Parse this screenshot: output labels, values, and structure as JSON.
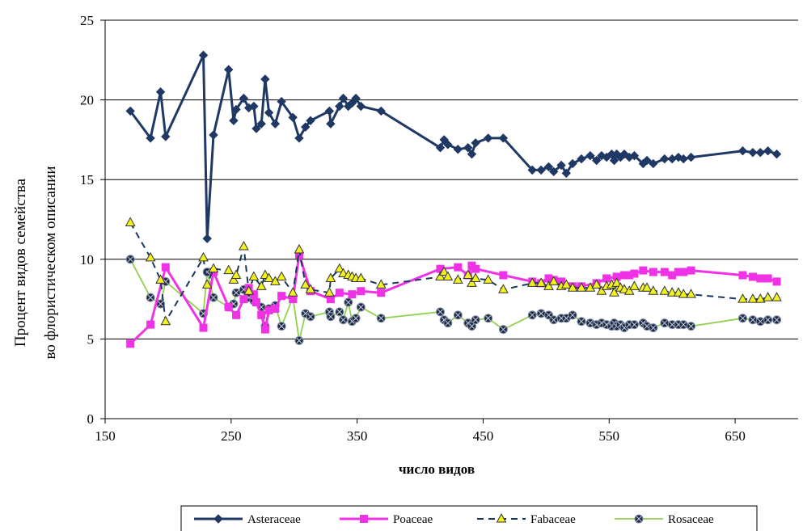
{
  "colors": {
    "Asteraceae": "#1F3864",
    "Poaceae": "#F032E6",
    "Fabaceae": "#17375E",
    "Fabaceae_marker_fill": "#F2F21E",
    "Rosaceae": "#92D050",
    "Rosaceae_marker_fill": "#1F2A44",
    "grid": "#000000"
  },
  "chart_data": {
    "type": "line",
    "title": "",
    "xlabel": "число видов",
    "ylabel_line1": "Процент видов семейства",
    "ylabel_line2": "во флористическом описании",
    "xlim": [
      150,
      700
    ],
    "ylim": [
      0,
      25
    ],
    "x_ticks": [
      150,
      250,
      350,
      450,
      550,
      650
    ],
    "y_ticks": [
      0,
      5,
      10,
      15,
      20,
      25
    ],
    "grid": "horizontal",
    "legend_position": "bottom",
    "series": [
      {
        "name": "Asteraceae",
        "style": "solid-diamond",
        "points": [
          [
            170,
            19.3
          ],
          [
            186,
            17.6
          ],
          [
            194,
            20.5
          ],
          [
            198,
            17.7
          ],
          [
            228,
            22.8
          ],
          [
            231,
            11.3
          ],
          [
            236,
            17.8
          ],
          [
            248,
            21.9
          ],
          [
            252,
            18.7
          ],
          [
            254,
            19.4
          ],
          [
            260,
            20.1
          ],
          [
            264,
            19.5
          ],
          [
            268,
            19.6
          ],
          [
            270,
            18.2
          ],
          [
            274,
            18.5
          ],
          [
            277,
            21.3
          ],
          [
            280,
            19.2
          ],
          [
            285,
            18.5
          ],
          [
            290,
            19.9
          ],
          [
            299,
            18.9
          ],
          [
            304,
            17.6
          ],
          [
            309,
            18.3
          ],
          [
            313,
            18.7
          ],
          [
            328,
            19.3
          ],
          [
            329,
            18.5
          ],
          [
            336,
            19.6
          ],
          [
            339,
            20.1
          ],
          [
            343,
            19.6
          ],
          [
            346,
            19.8
          ],
          [
            349,
            20.1
          ],
          [
            353,
            19.6
          ],
          [
            369,
            19.3
          ],
          [
            416,
            17.0
          ],
          [
            419,
            17.5
          ],
          [
            422,
            17.2
          ],
          [
            430,
            16.9
          ],
          [
            438,
            17.0
          ],
          [
            441,
            16.6
          ],
          [
            444,
            17.3
          ],
          [
            454,
            17.6
          ],
          [
            466,
            17.6
          ],
          [
            489,
            15.6
          ],
          [
            496,
            15.6
          ],
          [
            502,
            15.8
          ],
          [
            506,
            15.5
          ],
          [
            512,
            15.9
          ],
          [
            516,
            15.4
          ],
          [
            521,
            16.0
          ],
          [
            528,
            16.3
          ],
          [
            535,
            16.5
          ],
          [
            540,
            16.2
          ],
          [
            544,
            16.5
          ],
          [
            548,
            16.4
          ],
          [
            552,
            16.6
          ],
          [
            554,
            16.2
          ],
          [
            556,
            16.6
          ],
          [
            559,
            16.4
          ],
          [
            562,
            16.6
          ],
          [
            566,
            16.4
          ],
          [
            570,
            16.5
          ],
          [
            577,
            16.0
          ],
          [
            580,
            16.2
          ],
          [
            585,
            16.0
          ],
          [
            594,
            16.3
          ],
          [
            600,
            16.3
          ],
          [
            605,
            16.4
          ],
          [
            609,
            16.3
          ],
          [
            615,
            16.4
          ],
          [
            656,
            16.8
          ],
          [
            664,
            16.7
          ],
          [
            670,
            16.7
          ],
          [
            676,
            16.8
          ],
          [
            683,
            16.6
          ]
        ]
      },
      {
        "name": "Poaceae",
        "style": "solid-square",
        "points": [
          [
            170,
            4.7
          ],
          [
            186,
            5.9
          ],
          [
            198,
            9.5
          ],
          [
            228,
            5.7
          ],
          [
            236,
            9.2
          ],
          [
            248,
            7.0
          ],
          [
            254,
            6.5
          ],
          [
            260,
            7.5
          ],
          [
            264,
            8.2
          ],
          [
            268,
            7.8
          ],
          [
            270,
            7.3
          ],
          [
            274,
            6.5
          ],
          [
            277,
            5.6
          ],
          [
            280,
            6.8
          ],
          [
            285,
            6.9
          ],
          [
            290,
            7.7
          ],
          [
            299,
            7.5
          ],
          [
            304,
            10.3
          ],
          [
            313,
            8.0
          ],
          [
            329,
            7.5
          ],
          [
            336,
            7.9
          ],
          [
            346,
            7.8
          ],
          [
            353,
            8.0
          ],
          [
            369,
            7.9
          ],
          [
            416,
            9.4
          ],
          [
            430,
            9.5
          ],
          [
            438,
            9.0
          ],
          [
            441,
            9.6
          ],
          [
            444,
            9.4
          ],
          [
            466,
            9.0
          ],
          [
            489,
            8.6
          ],
          [
            496,
            8.5
          ],
          [
            502,
            8.8
          ],
          [
            506,
            8.7
          ],
          [
            512,
            8.6
          ],
          [
            521,
            8.3
          ],
          [
            528,
            8.3
          ],
          [
            540,
            8.5
          ],
          [
            548,
            8.8
          ],
          [
            556,
            8.9
          ],
          [
            562,
            9.0
          ],
          [
            566,
            9.0
          ],
          [
            570,
            9.1
          ],
          [
            577,
            9.3
          ],
          [
            585,
            9.2
          ],
          [
            594,
            9.2
          ],
          [
            600,
            9.0
          ],
          [
            605,
            9.2
          ],
          [
            609,
            9.2
          ],
          [
            615,
            9.3
          ],
          [
            656,
            9.0
          ],
          [
            664,
            8.9
          ],
          [
            670,
            8.8
          ],
          [
            676,
            8.8
          ],
          [
            683,
            8.6
          ]
        ]
      },
      {
        "name": "Fabaceae",
        "style": "dashed-triangle",
        "points": [
          [
            170,
            12.3
          ],
          [
            186,
            10.1
          ],
          [
            194,
            8.7
          ],
          [
            198,
            6.1
          ],
          [
            228,
            10.1
          ],
          [
            231,
            8.4
          ],
          [
            236,
            9.4
          ],
          [
            248,
            9.3
          ],
          [
            252,
            8.7
          ],
          [
            254,
            9.0
          ],
          [
            260,
            10.8
          ],
          [
            264,
            8.0
          ],
          [
            268,
            8.9
          ],
          [
            274,
            8.3
          ],
          [
            277,
            9.0
          ],
          [
            280,
            8.8
          ],
          [
            285,
            8.6
          ],
          [
            290,
            8.9
          ],
          [
            299,
            7.9
          ],
          [
            304,
            10.6
          ],
          [
            309,
            8.4
          ],
          [
            313,
            8.1
          ],
          [
            328,
            7.9
          ],
          [
            329,
            8.8
          ],
          [
            336,
            9.4
          ],
          [
            339,
            9.1
          ],
          [
            343,
            9.0
          ],
          [
            346,
            8.9
          ],
          [
            349,
            8.8
          ],
          [
            353,
            8.8
          ],
          [
            369,
            8.4
          ],
          [
            416,
            8.9
          ],
          [
            419,
            9.2
          ],
          [
            422,
            8.9
          ],
          [
            430,
            8.7
          ],
          [
            438,
            9.0
          ],
          [
            441,
            8.5
          ],
          [
            444,
            8.8
          ],
          [
            454,
            8.7
          ],
          [
            466,
            8.1
          ],
          [
            489,
            8.5
          ],
          [
            496,
            8.5
          ],
          [
            502,
            8.3
          ],
          [
            506,
            8.6
          ],
          [
            512,
            8.3
          ],
          [
            516,
            8.4
          ],
          [
            521,
            8.2
          ],
          [
            528,
            8.2
          ],
          [
            535,
            8.2
          ],
          [
            540,
            8.4
          ],
          [
            544,
            8.0
          ],
          [
            548,
            8.3
          ],
          [
            552,
            8.4
          ],
          [
            554,
            7.9
          ],
          [
            556,
            8.5
          ],
          [
            559,
            8.2
          ],
          [
            562,
            8.1
          ],
          [
            566,
            8.0
          ],
          [
            570,
            8.3
          ],
          [
            577,
            8.2
          ],
          [
            580,
            8.2
          ],
          [
            585,
            8.0
          ],
          [
            594,
            8.0
          ],
          [
            600,
            7.9
          ],
          [
            605,
            7.9
          ],
          [
            609,
            7.8
          ],
          [
            615,
            7.8
          ],
          [
            656,
            7.5
          ],
          [
            664,
            7.5
          ],
          [
            670,
            7.5
          ],
          [
            676,
            7.6
          ],
          [
            683,
            7.6
          ]
        ]
      },
      {
        "name": "Rosaceae",
        "style": "solid-circle",
        "points": [
          [
            170,
            10.0
          ],
          [
            186,
            7.6
          ],
          [
            194,
            7.2
          ],
          [
            198,
            8.6
          ],
          [
            228,
            6.6
          ],
          [
            231,
            9.2
          ],
          [
            236,
            7.6
          ],
          [
            248,
            7.0
          ],
          [
            252,
            7.2
          ],
          [
            254,
            7.9
          ],
          [
            260,
            8.1
          ],
          [
            264,
            7.6
          ],
          [
            268,
            7.4
          ],
          [
            274,
            7.0
          ],
          [
            277,
            5.8
          ],
          [
            280,
            6.9
          ],
          [
            285,
            7.1
          ],
          [
            290,
            5.8
          ],
          [
            299,
            7.6
          ],
          [
            304,
            4.9
          ],
          [
            309,
            6.6
          ],
          [
            313,
            6.4
          ],
          [
            328,
            6.7
          ],
          [
            329,
            6.4
          ],
          [
            336,
            6.7
          ],
          [
            339,
            6.2
          ],
          [
            343,
            7.3
          ],
          [
            346,
            6.1
          ],
          [
            349,
            6.3
          ],
          [
            353,
            7.0
          ],
          [
            369,
            6.3
          ],
          [
            416,
            6.7
          ],
          [
            419,
            6.2
          ],
          [
            422,
            6.0
          ],
          [
            430,
            6.5
          ],
          [
            438,
            6.0
          ],
          [
            441,
            5.8
          ],
          [
            444,
            6.2
          ],
          [
            454,
            6.3
          ],
          [
            466,
            5.6
          ],
          [
            489,
            6.5
          ],
          [
            496,
            6.6
          ],
          [
            502,
            6.5
          ],
          [
            506,
            6.2
          ],
          [
            512,
            6.3
          ],
          [
            516,
            6.3
          ],
          [
            521,
            6.5
          ],
          [
            528,
            6.1
          ],
          [
            535,
            6.0
          ],
          [
            540,
            5.9
          ],
          [
            544,
            6.0
          ],
          [
            548,
            5.9
          ],
          [
            552,
            5.8
          ],
          [
            554,
            6.0
          ],
          [
            556,
            5.8
          ],
          [
            559,
            5.9
          ],
          [
            562,
            5.7
          ],
          [
            566,
            5.9
          ],
          [
            570,
            5.9
          ],
          [
            577,
            6.0
          ],
          [
            580,
            5.8
          ],
          [
            585,
            5.7
          ],
          [
            594,
            6.0
          ],
          [
            600,
            5.9
          ],
          [
            605,
            5.9
          ],
          [
            609,
            5.9
          ],
          [
            615,
            5.8
          ],
          [
            656,
            6.3
          ],
          [
            664,
            6.2
          ],
          [
            670,
            6.1
          ],
          [
            676,
            6.2
          ],
          [
            683,
            6.2
          ]
        ]
      }
    ]
  }
}
